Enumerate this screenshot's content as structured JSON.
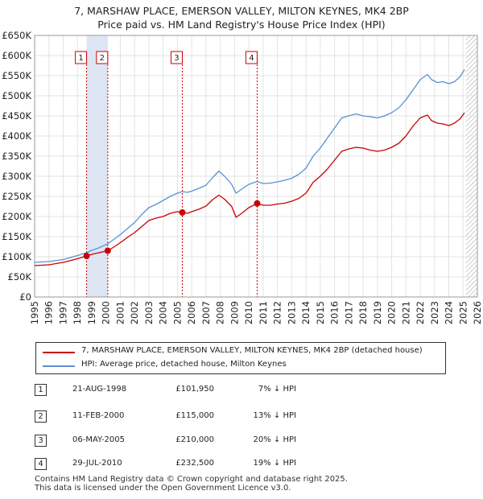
{
  "title_line1": "7, MARSHAW PLACE, EMERSON VALLEY, MILTON KEYNES, MK4 2BP",
  "title_line2": "Price paid vs. HM Land Registry's House Price Index (HPI)",
  "chart_data": {
    "type": "line",
    "xlim": [
      1995,
      2026
    ],
    "ylim": [
      0,
      650000
    ],
    "yticks": [
      0,
      50000,
      100000,
      150000,
      200000,
      250000,
      300000,
      350000,
      400000,
      450000,
      500000,
      550000,
      600000,
      650000
    ],
    "ytick_labels": [
      "£0",
      "£50K",
      "£100K",
      "£150K",
      "£200K",
      "£250K",
      "£300K",
      "£350K",
      "£400K",
      "£450K",
      "£500K",
      "£550K",
      "£600K",
      "£650K"
    ],
    "xticks": [
      1995,
      1996,
      1997,
      1998,
      1999,
      2000,
      2001,
      2002,
      2003,
      2004,
      2005,
      2006,
      2007,
      2008,
      2009,
      2010,
      2011,
      2012,
      2013,
      2014,
      2015,
      2016,
      2017,
      2018,
      2019,
      2020,
      2021,
      2022,
      2023,
      2024,
      2025,
      2026
    ],
    "xtick_labels": [
      "1995",
      "1996",
      "1997",
      "1998",
      "1999",
      "2000",
      "2001",
      "2002",
      "2003",
      "2004",
      "2005",
      "2006",
      "2007",
      "2008",
      "2009",
      "2010",
      "2011",
      "2012",
      "2013",
      "2014",
      "2015",
      "2016",
      "2017",
      "2018",
      "2019",
      "2020",
      "2021",
      "2022",
      "2023",
      "2024",
      "2025",
      "2026"
    ],
    "future_start": 2025.2,
    "shaded_ranges": [
      [
        1998.64,
        2000.12
      ]
    ],
    "series": [
      {
        "name": "7, MARSHAW PLACE, EMERSON VALLEY, MILTON KEYNES, MK4 2BP (detached house)",
        "color": "#cc0000",
        "x": [
          1995.0,
          1996.0,
          1997.0,
          1998.0,
          1998.64,
          1999.0,
          1999.5,
          2000.12,
          2000.5,
          2001.0,
          2001.5,
          2002.0,
          2002.5,
          2003.0,
          2003.5,
          2004.0,
          2004.5,
          2005.0,
          2005.34,
          2005.7,
          2006.0,
          2006.5,
          2007.0,
          2007.5,
          2007.9,
          2008.3,
          2008.8,
          2009.1,
          2009.5,
          2010.0,
          2010.58,
          2011.0,
          2011.5,
          2012.0,
          2012.5,
          2013.0,
          2013.5,
          2014.0,
          2014.5,
          2015.0,
          2015.5,
          2016.0,
          2016.5,
          2017.0,
          2017.5,
          2018.0,
          2018.5,
          2019.0,
          2019.5,
          2020.0,
          2020.5,
          2021.0,
          2021.5,
          2022.0,
          2022.5,
          2022.8,
          2023.2,
          2023.6,
          2024.0,
          2024.4,
          2024.8,
          2025.1
        ],
        "values": [
          78000,
          80000,
          86000,
          95000,
          101950,
          106000,
          110000,
          115000,
          123000,
          135000,
          148000,
          160000,
          175000,
          190000,
          196000,
          200000,
          208000,
          212000,
          210000,
          208000,
          212000,
          218000,
          226000,
          243000,
          253000,
          243000,
          225000,
          198000,
          208000,
          222000,
          232500,
          228000,
          228000,
          231000,
          233000,
          238000,
          245000,
          258000,
          285000,
          300000,
          318000,
          340000,
          362000,
          368000,
          372000,
          370000,
          365000,
          362000,
          365000,
          372000,
          382000,
          400000,
          425000,
          445000,
          452000,
          438000,
          432000,
          430000,
          426000,
          432000,
          443000,
          458000
        ]
      },
      {
        "name": "HPI: Average price, detached house, Milton Keynes",
        "color": "#5b8fd6",
        "x": [
          1995.0,
          1996.0,
          1997.0,
          1998.0,
          1998.64,
          1999.0,
          1999.5,
          2000.12,
          2000.5,
          2001.0,
          2001.5,
          2002.0,
          2002.5,
          2003.0,
          2003.5,
          2004.0,
          2004.5,
          2005.0,
          2005.34,
          2005.7,
          2006.0,
          2006.5,
          2007.0,
          2007.5,
          2007.9,
          2008.3,
          2008.8,
          2009.1,
          2009.5,
          2010.0,
          2010.58,
          2011.0,
          2011.5,
          2012.0,
          2012.5,
          2013.0,
          2013.5,
          2014.0,
          2014.5,
          2015.0,
          2015.5,
          2016.0,
          2016.5,
          2017.0,
          2017.5,
          2018.0,
          2018.5,
          2019.0,
          2019.5,
          2020.0,
          2020.5,
          2021.0,
          2021.5,
          2022.0,
          2022.5,
          2022.8,
          2023.2,
          2023.6,
          2024.0,
          2024.4,
          2024.8,
          2025.1
        ],
        "values": [
          86000,
          88000,
          93000,
          103000,
          110000,
          116000,
          122000,
          132000,
          142000,
          155000,
          170000,
          185000,
          205000,
          222000,
          230000,
          240000,
          250000,
          258000,
          262000,
          260000,
          263000,
          270000,
          278000,
          298000,
          313000,
          300000,
          280000,
          258000,
          268000,
          280000,
          287000,
          282000,
          283000,
          286000,
          290000,
          295000,
          305000,
          320000,
          350000,
          370000,
          395000,
          420000,
          445000,
          450000,
          455000,
          450000,
          448000,
          445000,
          450000,
          458000,
          470000,
          490000,
          515000,
          540000,
          553000,
          540000,
          533000,
          535000,
          530000,
          535000,
          548000,
          565000
        ]
      }
    ],
    "sales": [
      {
        "label": "1",
        "x": 1998.64,
        "value": 101950
      },
      {
        "label": "2",
        "x": 2000.12,
        "value": 115000
      },
      {
        "label": "3",
        "x": 2005.34,
        "value": 210000
      },
      {
        "label": "4",
        "x": 2010.58,
        "value": 232500
      }
    ]
  },
  "legend": {
    "property": "7, MARSHAW PLACE, EMERSON VALLEY, MILTON KEYNES, MK4 2BP (detached house)",
    "hpi": "HPI: Average price, detached house, Milton Keynes"
  },
  "transactions": [
    {
      "num": "1",
      "date": "21-AUG-1998",
      "price": "£101,950",
      "hpi": "7% ↓ HPI"
    },
    {
      "num": "2",
      "date": "11-FEB-2000",
      "price": "£115,000",
      "hpi": "13% ↓ HPI"
    },
    {
      "num": "3",
      "date": "06-MAY-2005",
      "price": "£210,000",
      "hpi": "20% ↓ HPI"
    },
    {
      "num": "4",
      "date": "29-JUL-2010",
      "price": "£232,500",
      "hpi": "19% ↓ HPI"
    }
  ],
  "footer_line1": "Contains HM Land Registry data © Crown copyright and database right 2025.",
  "footer_line2": "This data is licensed under the Open Government Licence v3.0."
}
